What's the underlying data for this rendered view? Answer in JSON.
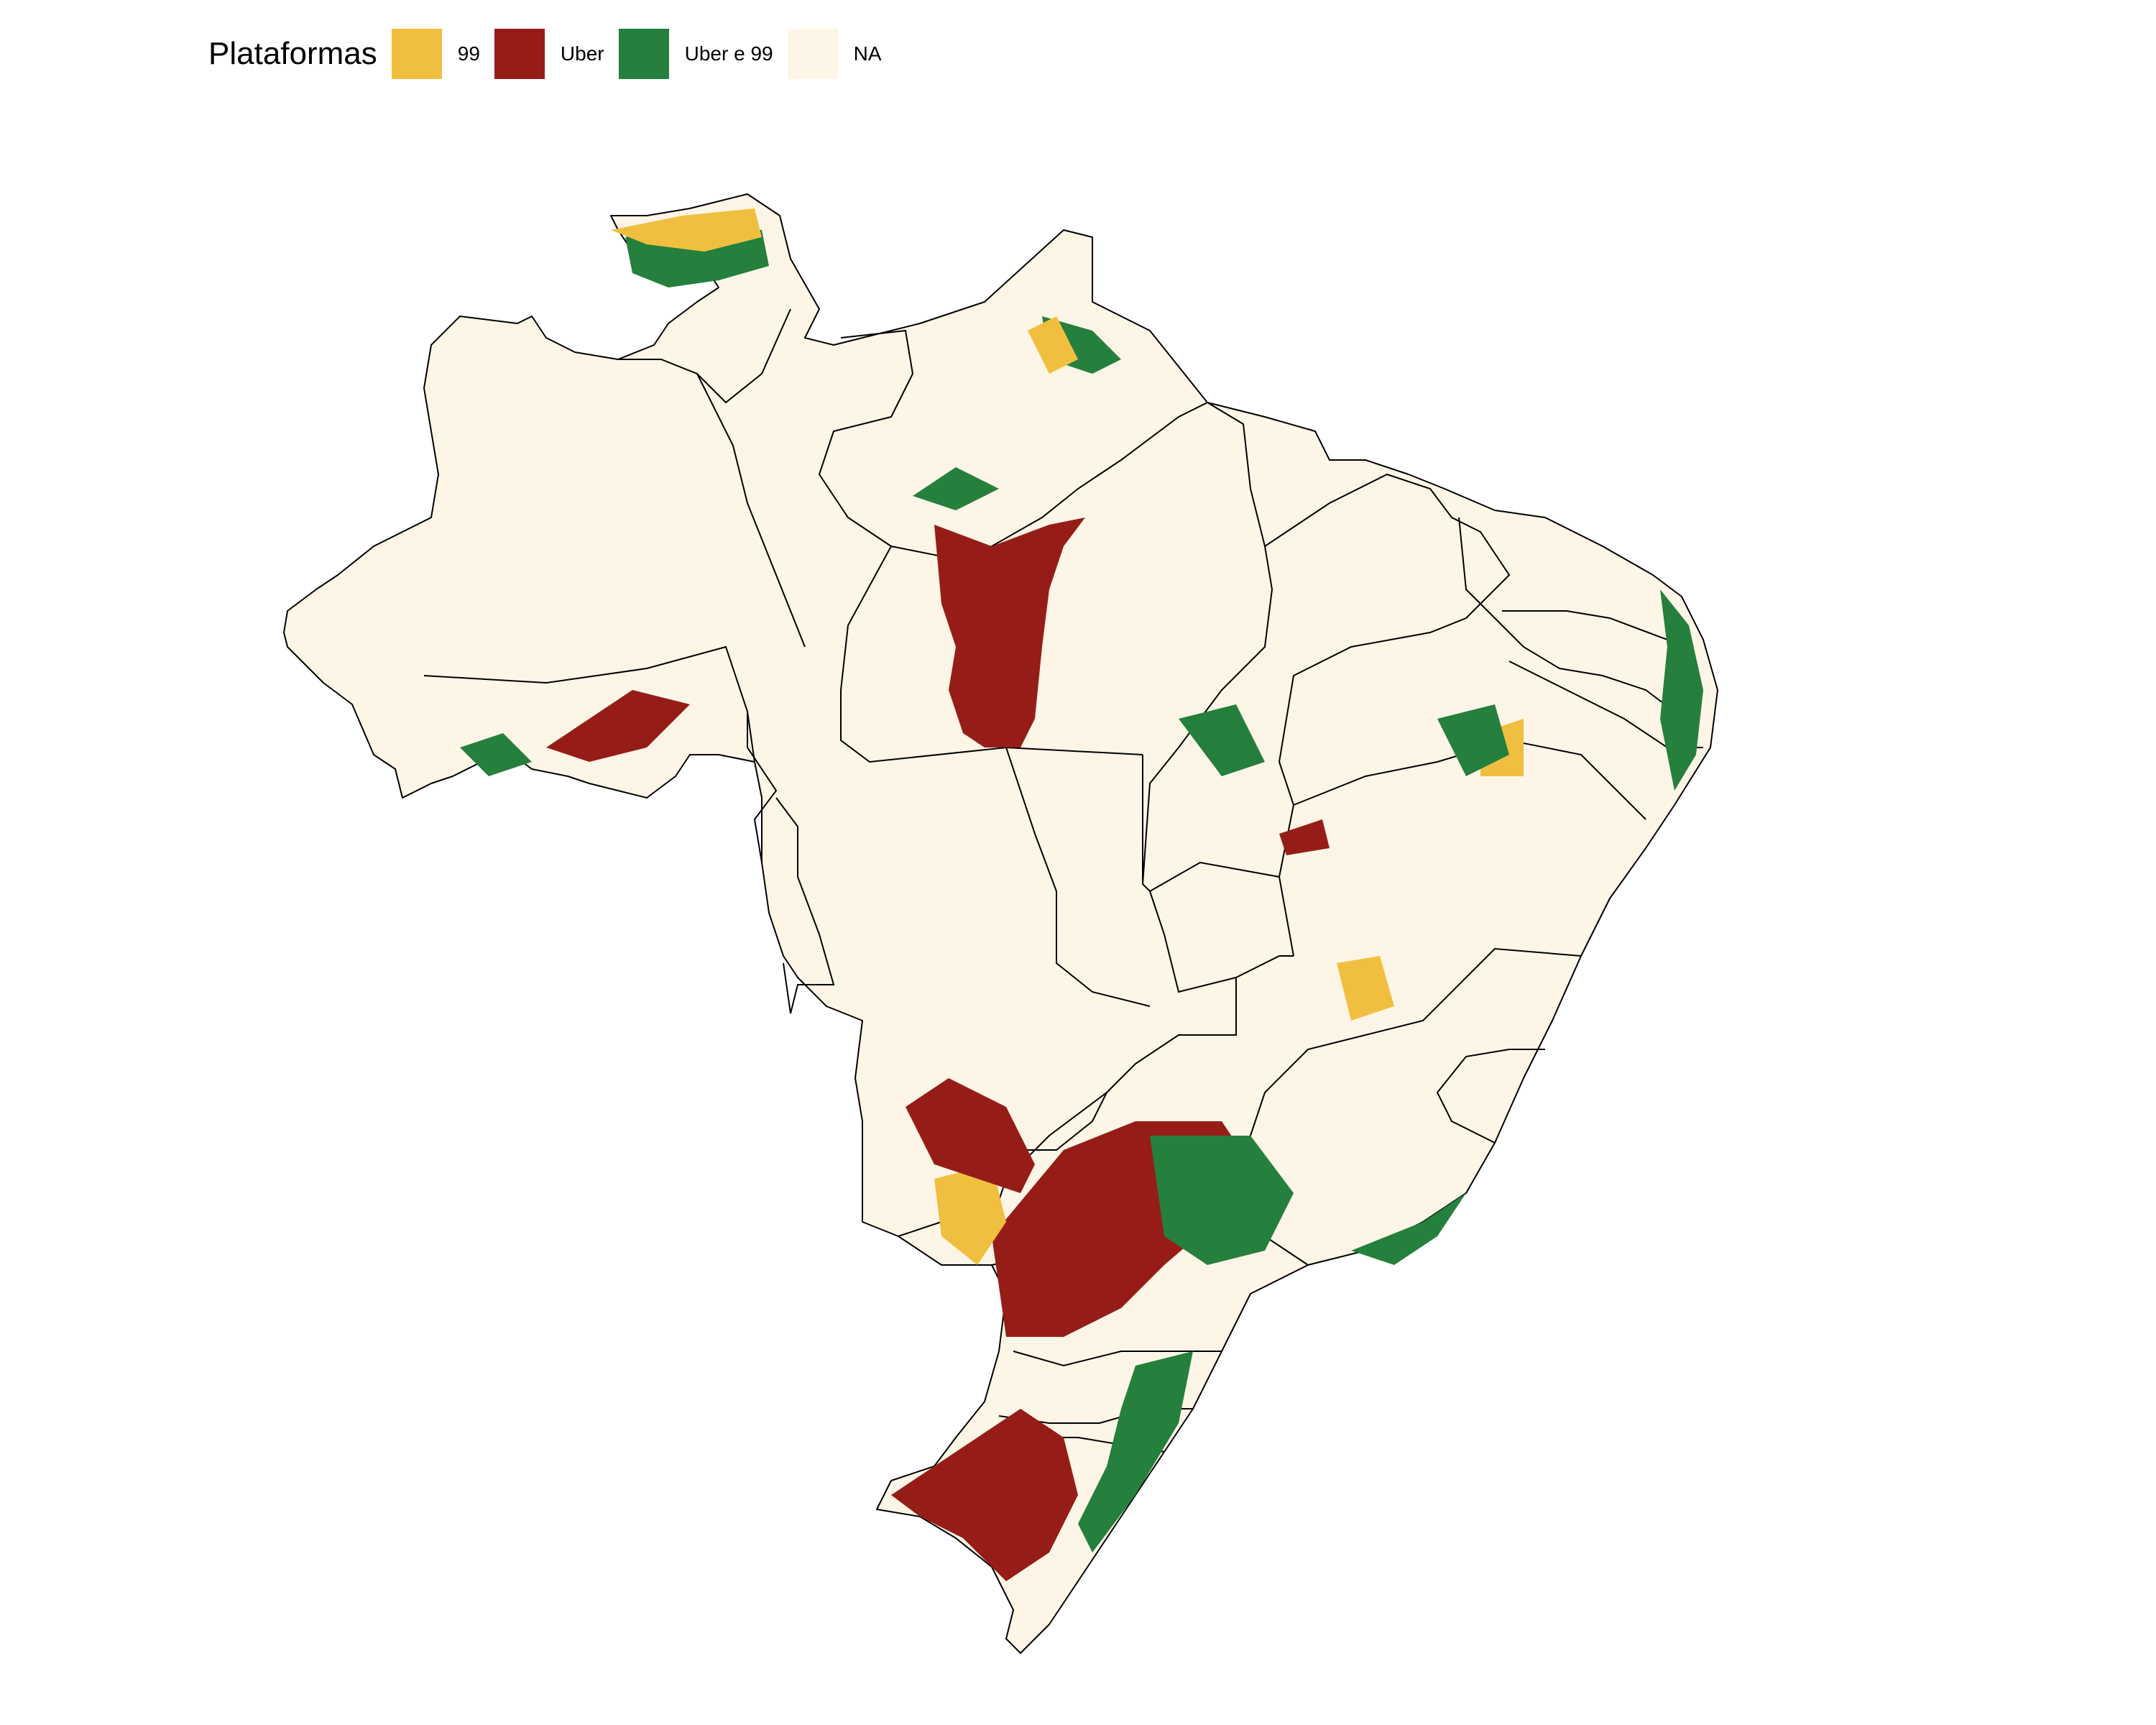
{
  "legend": {
    "title": "Plataformas",
    "items": [
      {
        "label": "99",
        "color": "#f1bf3f"
      },
      {
        "label": "Uber",
        "color": "#961d17"
      },
      {
        "label": "Uber e 99",
        "color": "#257f3d"
      },
      {
        "label": "NA",
        "color": "#fdf5e6"
      }
    ]
  },
  "colors": {
    "background": "#ffffff",
    "na_fill": "#fdf5e6",
    "border": "#000000"
  }
}
